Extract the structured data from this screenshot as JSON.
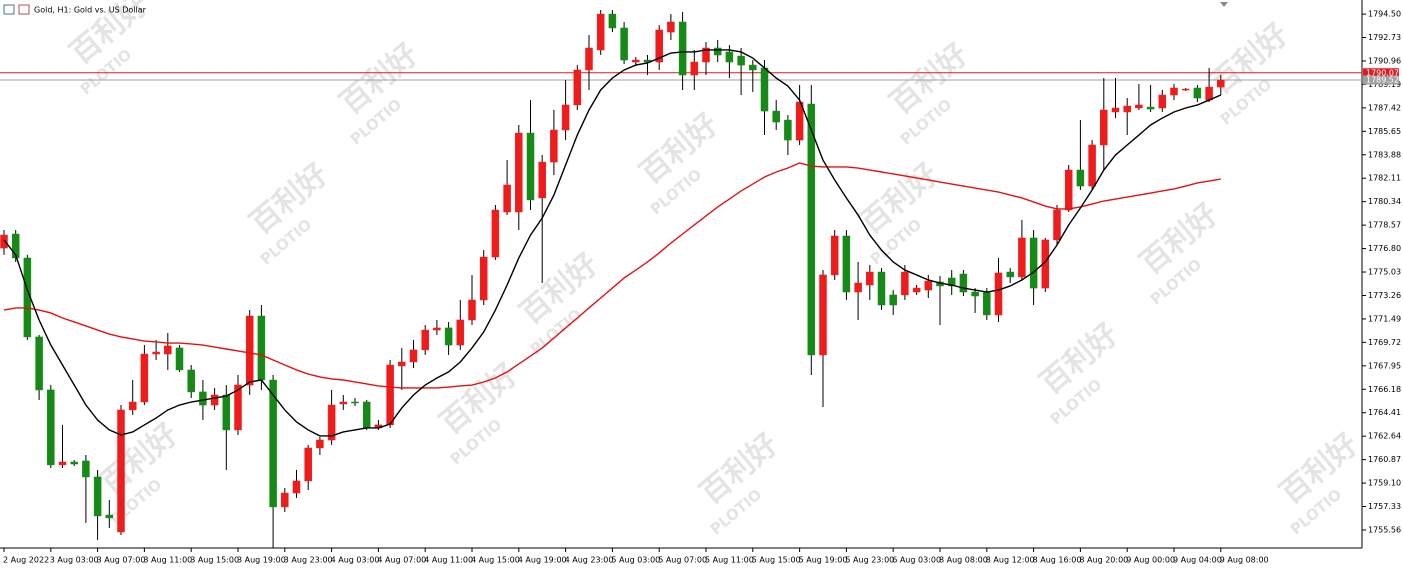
{
  "chart_data": {
    "type": "candlestick",
    "title": "Gold, H1: Gold vs. US Dollar",
    "watermark": {
      "brand": "PLOTIO",
      "name": "百利好"
    },
    "up_color": "#ef1c1c",
    "down_color": "#168a16",
    "categories": [
      "2 Aug 2022",
      null,
      null,
      null,
      "3 Aug 03:00",
      null,
      null,
      null,
      "3 Aug 07:00",
      null,
      null,
      null,
      "3 Aug 11:00",
      null,
      null,
      null,
      "3 Aug 15:00",
      null,
      null,
      null,
      "3 Aug 19:00",
      null,
      null,
      null,
      "3 Aug 23:00",
      null,
      null,
      null,
      "4 Aug 03:00",
      null,
      null,
      null,
      "4 Aug 07:00",
      null,
      null,
      null,
      "4 Aug 11:00",
      null,
      null,
      null,
      "4 Aug 15:00",
      null,
      null,
      null,
      "4 Aug 19:00",
      null,
      null,
      null,
      "4 Aug 23:00",
      null,
      null,
      null,
      "5 Aug 03:00",
      null,
      null,
      null,
      "5 Aug 07:00",
      null,
      null,
      null,
      "5 Aug 11:00",
      null,
      null,
      null,
      "5 Aug 15:00",
      null,
      null,
      null,
      "5 Aug 19:00",
      null,
      null,
      null,
      "5 Aug 23:00",
      null,
      null,
      null,
      "6 Aug 03:00",
      null,
      null,
      null,
      "8 Aug 08:00",
      null,
      null,
      null,
      "8 Aug 12:00",
      null,
      null,
      null,
      "8 Aug 16:00",
      null,
      null,
      null,
      "8 Aug 20:00",
      null,
      null,
      null,
      "9 Aug 00:00",
      null,
      null,
      null,
      "9 Aug 04:00",
      null,
      null,
      null,
      "9 Aug 08:00"
    ],
    "open": [
      1776.84,
      1777.9,
      1776.09,
      1770.13,
      1766.13,
      1760.47,
      1760.69,
      1760.77,
      1759.56,
      1756.69,
      1755.41,
      1764.62,
      1765.22,
      1768.84,
      1768.84,
      1769.3,
      1767.64,
      1765.98,
      1764.99,
      1765.75,
      1763.11,
      1766.5,
      1771.71,
      1766.88,
      1757.3,
      1758.35,
      1759.26,
      1761.75,
      1762.35,
      1765.07,
      1765.22,
      1765.22,
      1763.26,
      1763.49,
      1767.94,
      1768.24,
      1769.15,
      1770.65,
      1770.81,
      1769.52,
      1771.41,
      1772.92,
      1776.16,
      1779.56,
      1779.56,
      1785.52,
      1780.62,
      1783.33,
      1785.75,
      1787.64,
      1790.28,
      1791.79,
      1794.5,
      1793.45,
      1790.88,
      1791.03,
      1790.88,
      1793.14,
      1793.9,
      1789.9,
      1790.88,
      1791.94,
      1791.64,
      1791.33,
      1790.65,
      1790.43,
      1787.18,
      1786.5,
      1784.99,
      1787.71,
      1768.77,
      1774.81,
      1777.75,
      1773.52,
      1774.05,
      1775.03,
      1773.3,
      1773.3,
      1773.52,
      1773.67,
      1774.28,
      1774.58,
      1774.88,
      1773.52,
      1773.52,
      1771.79,
      1775.03,
      1774.66,
      1777.6,
      1773.82,
      1777.45,
      1779.71,
      1782.73,
      1781.52,
      1784.62,
      1787.11,
      1787.11,
      1787.41,
      1787.48,
      1787.41,
      1788.39,
      1788.77,
      1788.92,
      1788.01,
      1788.99
    ],
    "high": [
      1778.2,
      1778.2,
      1776.32,
      1770.28,
      1766.5,
      1763.49,
      1760.84,
      1761.22,
      1760.09,
      1757.82,
      1764.99,
      1766.88,
      1769.52,
      1769.9,
      1770.43,
      1769.52,
      1768.01,
      1766.88,
      1766.28,
      1766.5,
      1767.26,
      1772.16,
      1772.54,
      1767.26,
      1758.73,
      1760.09,
      1761.98,
      1762.58,
      1766.13,
      1765.75,
      1765.52,
      1765.37,
      1763.86,
      1768.39,
      1769.3,
      1769.9,
      1771.03,
      1771.41,
      1771.26,
      1772.92,
      1774.81,
      1776.69,
      1780.09,
      1783.48,
      1786.13,
      1788.01,
      1783.86,
      1787.26,
      1789.52,
      1790.65,
      1792.92,
      1794.81,
      1794.81,
      1793.9,
      1791.26,
      1791.41,
      1793.67,
      1794.5,
      1794.65,
      1791.79,
      1792.39,
      1792.54,
      1792.16,
      1791.94,
      1791.03,
      1791.03,
      1788.01,
      1786.88,
      1789.15,
      1789.15,
      1775.18,
      1778.2,
      1778.2,
      1775.79,
      1775.56,
      1775.33,
      1773.67,
      1775.56,
      1774.05,
      1774.81,
      1774.73,
      1775.18,
      1775.18,
      1773.82,
      1773.82,
      1776.09,
      1775.33,
      1778.96,
      1778.2,
      1777.6,
      1780.09,
      1783.11,
      1786.5,
      1784.99,
      1789.67,
      1789.67,
      1788.16,
      1789.22,
      1789.15,
      1788.77,
      1789.22,
      1788.92,
      1789.15,
      1790.43,
      1789.9
    ],
    "low": [
      1776.32,
      1775.79,
      1769.9,
      1765.37,
      1760.24,
      1760.24,
      1760.39,
      1756.09,
      1754.81,
      1755.71,
      1755.18,
      1764.24,
      1764.99,
      1768.39,
      1767.64,
      1767.49,
      1765.52,
      1763.86,
      1764.62,
      1760.09,
      1762.73,
      1765.75,
      1766.13,
      1754.2,
      1756.92,
      1757.98,
      1758.58,
      1761.22,
      1761.98,
      1764.62,
      1764.92,
      1763.11,
      1763.11,
      1763.26,
      1766.13,
      1767.79,
      1768.77,
      1770.28,
      1768.77,
      1769.15,
      1771.03,
      1772.54,
      1775.94,
      1779.33,
      1778.2,
      1779.71,
      1774.2,
      1782.35,
      1784.99,
      1787.26,
      1788.77,
      1791.41,
      1793.14,
      1790.73,
      1790.58,
      1789.9,
      1790.28,
      1792.54,
      1788.77,
      1788.77,
      1789.9,
      1790.88,
      1789.67,
      1788.39,
      1788.62,
      1785.37,
      1785.75,
      1783.86,
      1784.62,
      1767.26,
      1764.84,
      1774.43,
      1772.92,
      1771.41,
      1772.92,
      1772.16,
      1771.79,
      1772.92,
      1773.3,
      1773.07,
      1771.03,
      1773.3,
      1773.22,
      1771.94,
      1771.41,
      1771.26,
      1774.2,
      1774.43,
      1772.54,
      1773.52,
      1777.07,
      1779.56,
      1781.22,
      1781.22,
      1782.73,
      1786.65,
      1785.37,
      1787.26,
      1787.11,
      1787.11,
      1788.01,
      1788.69,
      1787.86,
      1787.86,
      1788.39
    ],
    "close": [
      1777.82,
      1776.09,
      1770.13,
      1766.13,
      1760.47,
      1760.69,
      1760.54,
      1759.56,
      1756.62,
      1756.47,
      1764.62,
      1765.22,
      1768.84,
      1768.99,
      1769.45,
      1767.64,
      1765.98,
      1764.99,
      1765.75,
      1763.11,
      1766.5,
      1771.71,
      1766.88,
      1757.3,
      1758.35,
      1759.26,
      1761.75,
      1762.35,
      1764.99,
      1765.22,
      1765.15,
      1763.26,
      1763.49,
      1768.01,
      1768.24,
      1769.15,
      1770.65,
      1770.81,
      1769.52,
      1771.41,
      1772.92,
      1776.16,
      1779.71,
      1781.6,
      1785.52,
      1780.47,
      1783.33,
      1785.75,
      1787.64,
      1790.28,
      1791.94,
      1794.5,
      1793.45,
      1791.03,
      1791.03,
      1790.88,
      1793.3,
      1793.9,
      1789.9,
      1790.88,
      1791.94,
      1791.41,
      1790.88,
      1790.65,
      1790.28,
      1787.18,
      1786.35,
      1784.99,
      1787.86,
      1768.77,
      1774.81,
      1777.75,
      1773.52,
      1774.2,
      1775.03,
      1772.54,
      1772.54,
      1775.03,
      1773.82,
      1774.35,
      1773.98,
      1773.98,
      1773.52,
      1773.22,
      1771.79,
      1774.96,
      1774.66,
      1777.6,
      1773.82,
      1777.45,
      1779.71,
      1782.73,
      1781.52,
      1784.62,
      1787.26,
      1787.41,
      1787.56,
      1787.64,
      1787.33,
      1788.39,
      1788.92,
      1788.84,
      1788.16,
      1788.99,
      1789.52
    ],
    "overlays": [
      {
        "color": "#e31212",
        "values": [
          1772.16,
          1772.32,
          1772.32,
          1772.16,
          1771.94,
          1771.56,
          1771.26,
          1770.96,
          1770.65,
          1770.35,
          1770.13,
          1769.98,
          1769.82,
          1769.75,
          1769.67,
          1769.67,
          1769.6,
          1769.52,
          1769.37,
          1769.22,
          1769.07,
          1768.92,
          1768.77,
          1768.39,
          1768.01,
          1767.64,
          1767.33,
          1767.11,
          1766.96,
          1766.88,
          1766.73,
          1766.58,
          1766.43,
          1766.35,
          1766.28,
          1766.28,
          1766.28,
          1766.28,
          1766.35,
          1766.43,
          1766.5,
          1766.73,
          1767.03,
          1767.49,
          1768.09,
          1768.69,
          1769.3,
          1770.05,
          1770.81,
          1771.56,
          1772.32,
          1773.07,
          1773.82,
          1774.58,
          1775.18,
          1775.79,
          1776.47,
          1777.22,
          1777.9,
          1778.58,
          1779.26,
          1779.94,
          1780.54,
          1781.15,
          1781.67,
          1782.2,
          1782.58,
          1782.88,
          1783.26,
          1783.03,
          1782.96,
          1782.96,
          1782.96,
          1782.88,
          1782.73,
          1782.58,
          1782.43,
          1782.28,
          1782.13,
          1781.98,
          1781.82,
          1781.67,
          1781.52,
          1781.37,
          1781.22,
          1781.07,
          1780.84,
          1780.62,
          1780.32,
          1780.01,
          1779.79,
          1779.79,
          1779.94,
          1780.16,
          1780.39,
          1780.54,
          1780.69,
          1780.84,
          1780.99,
          1781.15,
          1781.3,
          1781.52,
          1781.75,
          1781.9,
          1782.05
        ]
      },
      {
        "color": "#000000",
        "values": [
          1777.45,
          1776.32,
          1773.67,
          1771.41,
          1769.52,
          1768.01,
          1766.5,
          1764.99,
          1763.86,
          1763.11,
          1762.73,
          1762.96,
          1763.49,
          1764.01,
          1764.62,
          1764.99,
          1765.22,
          1765.37,
          1765.52,
          1765.67,
          1766.13,
          1766.73,
          1766.88,
          1765.75,
          1764.62,
          1763.71,
          1763.11,
          1762.66,
          1762.66,
          1762.96,
          1763.11,
          1763.26,
          1763.26,
          1763.56,
          1764.77,
          1765.75,
          1766.5,
          1767.03,
          1767.49,
          1768.24,
          1769.3,
          1770.5,
          1772.16,
          1774.05,
          1776.09,
          1777.82,
          1779.11,
          1780.84,
          1783.11,
          1785.37,
          1787.26,
          1788.77,
          1789.67,
          1790.28,
          1790.65,
          1790.81,
          1791.18,
          1791.56,
          1791.64,
          1791.64,
          1791.79,
          1791.79,
          1791.79,
          1791.64,
          1791.18,
          1790.43,
          1789.67,
          1789.07,
          1788.01,
          1785.75,
          1783.48,
          1781.98,
          1780.62,
          1779.33,
          1777.82,
          1776.69,
          1775.79,
          1775.18,
          1774.81,
          1774.43,
          1774.2,
          1774.05,
          1773.82,
          1773.67,
          1773.52,
          1773.67,
          1773.98,
          1774.43,
          1775.03,
          1775.79,
          1777.07,
          1778.58,
          1779.86,
          1781.22,
          1782.73,
          1783.86,
          1784.62,
          1785.37,
          1786.13,
          1786.65,
          1787.11,
          1787.41,
          1787.64,
          1788.01,
          1788.39
        ]
      }
    ],
    "price_lines": [
      {
        "value": 1790.07,
        "color": "#e31a1c"
      },
      {
        "value": 1789.52,
        "color": "#a0a0a0"
      }
    ],
    "ylim": [
      1754.2,
      1795.26
    ],
    "yticks": [
      {
        "value": 1794.5,
        "label": "1794.50"
      },
      1792.73,
      1790.96,
      1789.19,
      1787.42,
      1785.65,
      1783.88,
      1782.11,
      1780.34,
      1778.57,
      {
        "value": 1776.8,
        "label": "1776.80"
      },
      1775.03,
      1773.26,
      1771.49,
      1769.72,
      1767.95,
      1766.18,
      1764.41,
      1762.64,
      1760.87,
      {
        "value": 1759.1,
        "label": "1759.10"
      },
      1757.33,
      1755.56
    ],
    "grid": false
  }
}
